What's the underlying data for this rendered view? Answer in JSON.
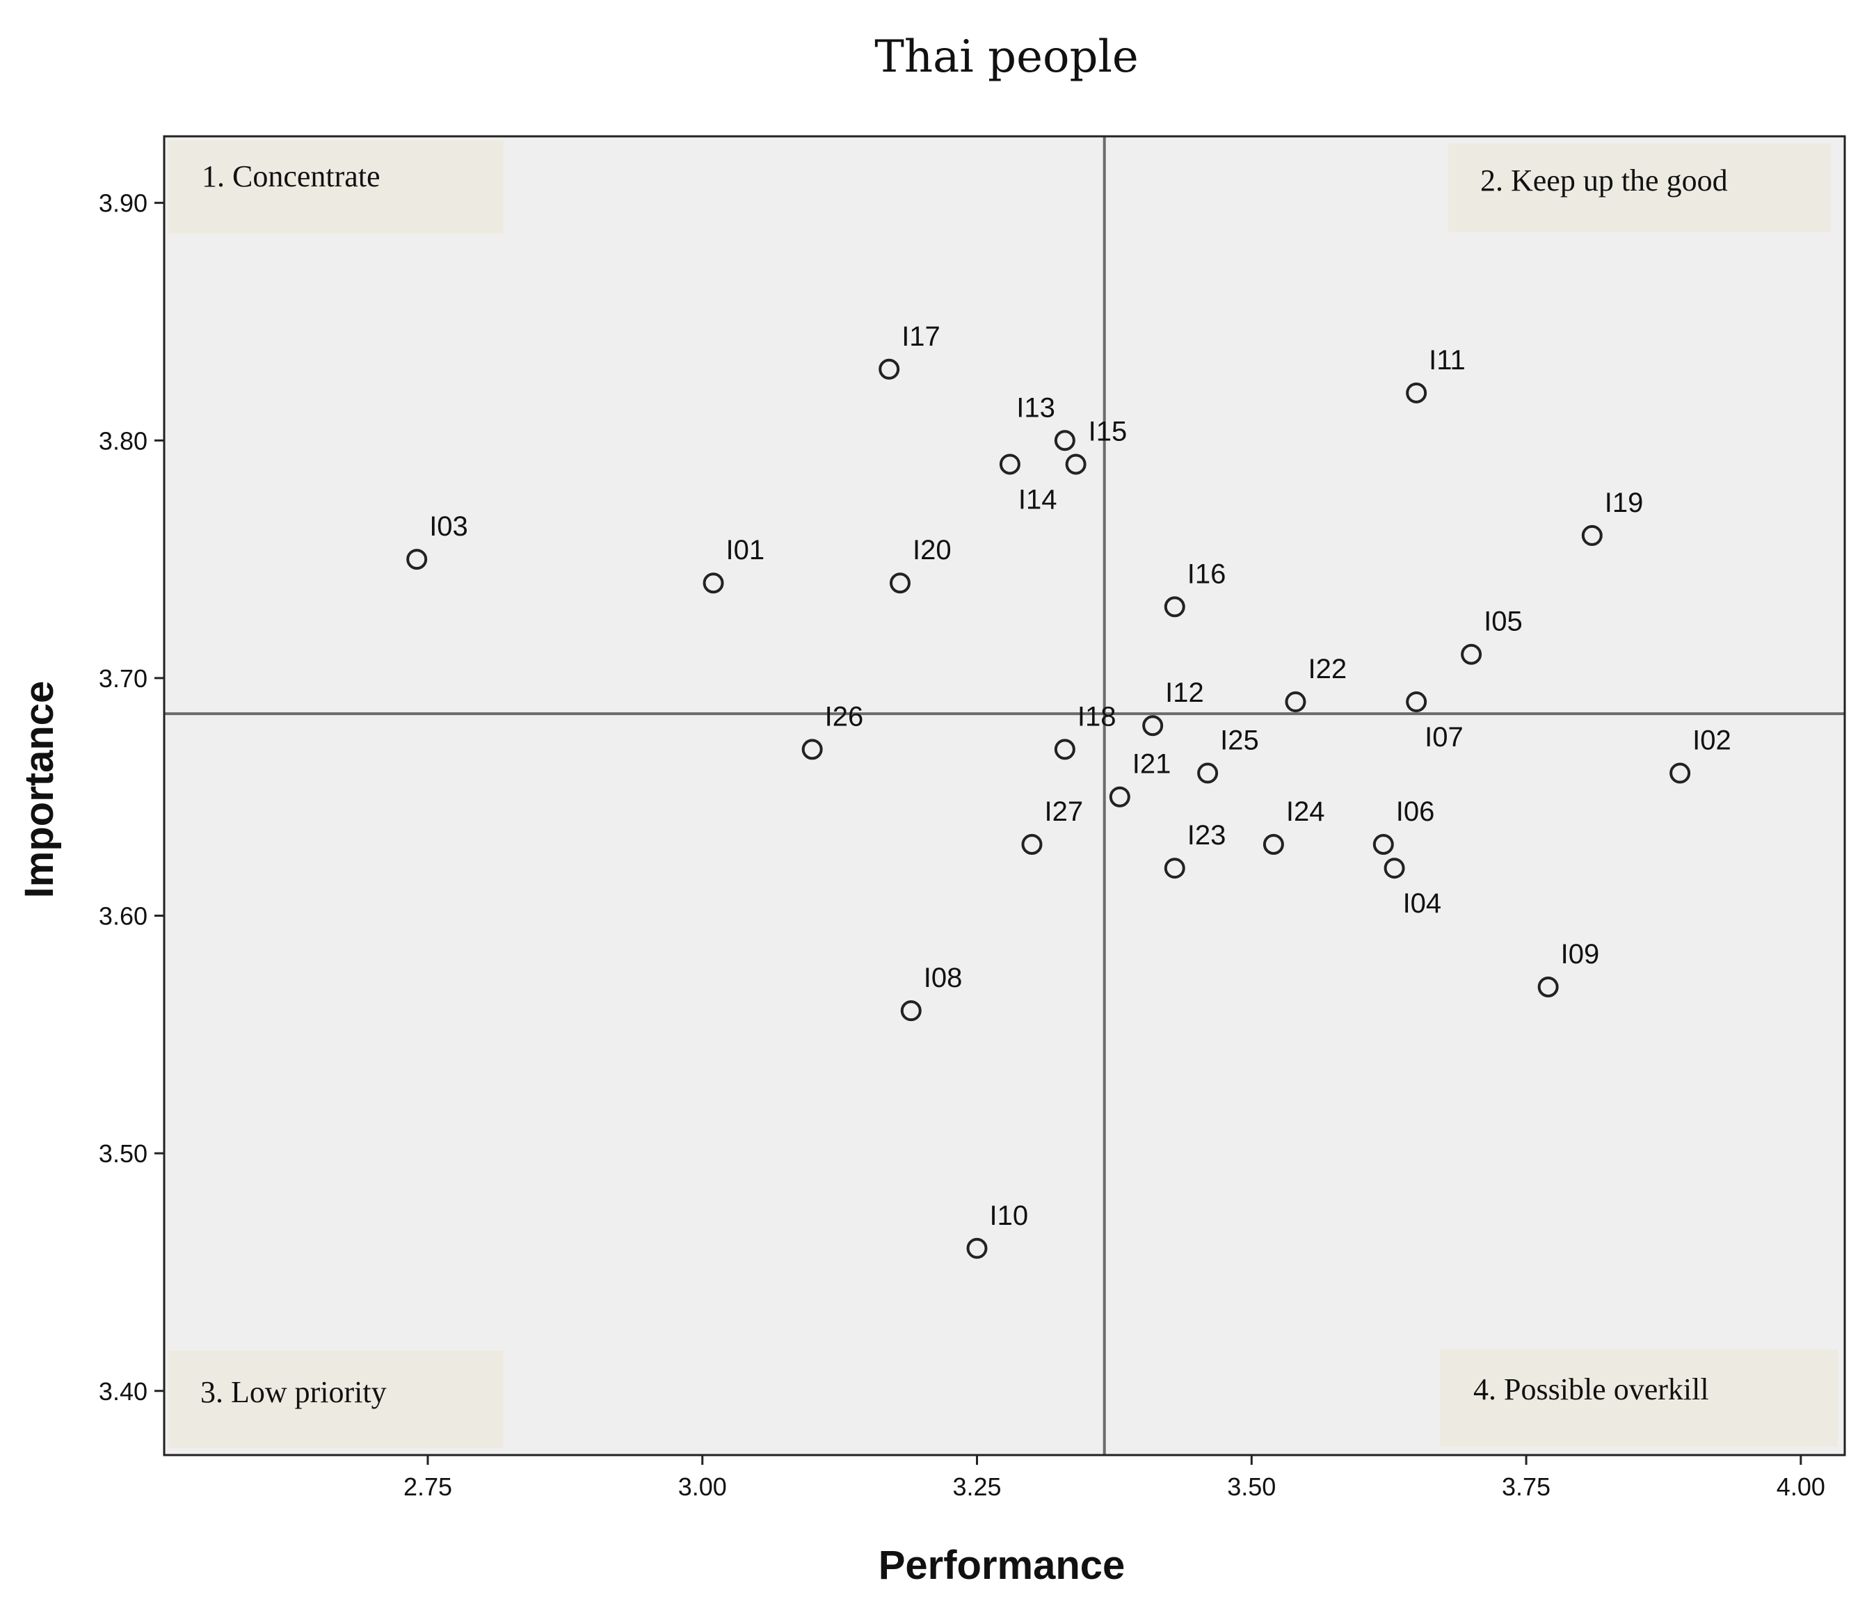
{
  "chart_data": {
    "type": "scatter",
    "title": "Thai people",
    "xlabel": "Performance",
    "ylabel": "Importance",
    "xlim": [
      2.51,
      4.04
    ],
    "ylim": [
      3.373,
      3.928
    ],
    "x_ticks": [
      "2.75",
      "3.00",
      "3.25",
      "3.50",
      "3.75",
      "4.00"
    ],
    "x_tick_values": [
      2.75,
      3.0,
      3.25,
      3.5,
      3.75,
      4.0
    ],
    "y_ticks": [
      "3.40",
      "3.50",
      "3.60",
      "3.70",
      "3.80",
      "3.90"
    ],
    "y_tick_values": [
      3.4,
      3.5,
      3.6,
      3.7,
      3.8,
      3.9
    ],
    "reference_lines": {
      "x": 3.366,
      "y": 3.685
    },
    "grid": false,
    "background": "#efefef",
    "quadrant_fill": "#edebe1",
    "quadrants": [
      {
        "label": "1. Concentrate",
        "corner": "top-left"
      },
      {
        "label": "2. Keep up the good",
        "corner": "top-right"
      },
      {
        "label": "3. Low priority",
        "corner": "bottom-left"
      },
      {
        "label": "4. Possible overkill",
        "corner": "bottom-right"
      }
    ],
    "points": [
      {
        "label": "I01",
        "x": 3.01,
        "y": 3.74,
        "label_pos": "above-right"
      },
      {
        "label": "I02",
        "x": 3.89,
        "y": 3.66,
        "label_pos": "above-right"
      },
      {
        "label": "I03",
        "x": 2.74,
        "y": 3.75,
        "label_pos": "above-right"
      },
      {
        "label": "I04",
        "x": 3.63,
        "y": 3.62,
        "label_pos": "below-right"
      },
      {
        "label": "I05",
        "x": 3.7,
        "y": 3.71,
        "label_pos": "above-right"
      },
      {
        "label": "I06",
        "x": 3.62,
        "y": 3.63,
        "label_pos": "above-right"
      },
      {
        "label": "I07",
        "x": 3.65,
        "y": 3.69,
        "label_pos": "below-right"
      },
      {
        "label": "I08",
        "x": 3.19,
        "y": 3.56,
        "label_pos": "above-right"
      },
      {
        "label": "I09",
        "x": 3.77,
        "y": 3.57,
        "label_pos": "above-right"
      },
      {
        "label": "I10",
        "x": 3.25,
        "y": 3.46,
        "label_pos": "above-right"
      },
      {
        "label": "I11",
        "x": 3.65,
        "y": 3.82,
        "label_pos": "above-right"
      },
      {
        "label": "I12",
        "x": 3.41,
        "y": 3.68,
        "label_pos": "above-right"
      },
      {
        "label": "I13",
        "x": 3.33,
        "y": 3.8,
        "label_pos": "above-left"
      },
      {
        "label": "I14",
        "x": 3.28,
        "y": 3.79,
        "label_pos": "below-right"
      },
      {
        "label": "I15",
        "x": 3.34,
        "y": 3.79,
        "label_pos": "above-right"
      },
      {
        "label": "I16",
        "x": 3.43,
        "y": 3.73,
        "label_pos": "above-right"
      },
      {
        "label": "I17",
        "x": 3.17,
        "y": 3.83,
        "label_pos": "above-right"
      },
      {
        "label": "I18",
        "x": 3.33,
        "y": 3.67,
        "label_pos": "above-right"
      },
      {
        "label": "I19",
        "x": 3.81,
        "y": 3.76,
        "label_pos": "above-right"
      },
      {
        "label": "I20",
        "x": 3.18,
        "y": 3.74,
        "label_pos": "above-right"
      },
      {
        "label": "I21",
        "x": 3.38,
        "y": 3.65,
        "label_pos": "above-right"
      },
      {
        "label": "I22",
        "x": 3.54,
        "y": 3.69,
        "label_pos": "above-right"
      },
      {
        "label": "I23",
        "x": 3.43,
        "y": 3.62,
        "label_pos": "above-right"
      },
      {
        "label": "I24",
        "x": 3.52,
        "y": 3.63,
        "label_pos": "above-right"
      },
      {
        "label": "I25",
        "x": 3.46,
        "y": 3.66,
        "label_pos": "above-right"
      },
      {
        "label": "I26",
        "x": 3.1,
        "y": 3.67,
        "label_pos": "above-right"
      },
      {
        "label": "I27",
        "x": 3.3,
        "y": 3.63,
        "label_pos": "above-right"
      }
    ]
  }
}
